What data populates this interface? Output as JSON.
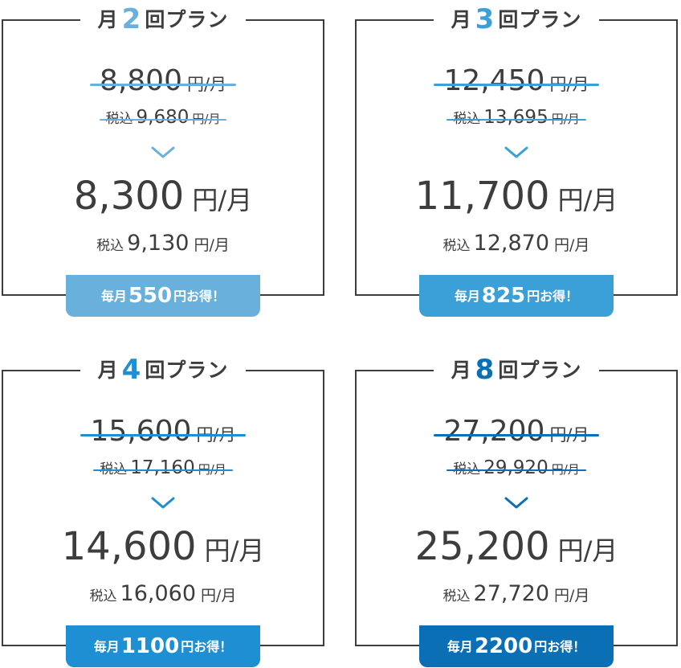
{
  "plans": [
    {
      "title_prefix": "月",
      "title_num": "2",
      "title_suffix": "回プラン",
      "old_price": "8,800",
      "old_unit": "円/月",
      "old_tax_label": "税込",
      "old_tax_price": "9,680",
      "old_tax_unit": "円/月",
      "new_price": "8,300",
      "new_unit": "円/月",
      "new_tax_label": "税込",
      "new_tax_price": "9,130",
      "new_tax_unit": "円/月",
      "badge_prefix": "毎月",
      "badge_amount": "550",
      "badge_suffix": "円お得！",
      "accent": "#6ab0dc",
      "badge_color": "#6ab0dc"
    },
    {
      "title_prefix": "月",
      "title_num": "3",
      "title_suffix": "回プラン",
      "old_price": "12,450",
      "old_unit": "円/月",
      "old_tax_label": "税込",
      "old_tax_price": "13,695",
      "old_tax_unit": "円/月",
      "new_price": "11,700",
      "new_unit": "円/月",
      "new_tax_label": "税込",
      "new_tax_price": "12,870",
      "new_tax_unit": "円/月",
      "badge_prefix": "毎月",
      "badge_amount": "825",
      "badge_suffix": "円お得！",
      "accent": "#3b9fd8",
      "badge_color": "#3b9fd8"
    },
    {
      "title_prefix": "月",
      "title_num": "4",
      "title_suffix": "回プラン",
      "old_price": "15,600",
      "old_unit": "円/月",
      "old_tax_label": "税込",
      "old_tax_price": "17,160",
      "old_tax_unit": "円/月",
      "new_price": "14,600",
      "new_unit": "円/月",
      "new_tax_label": "税込",
      "new_tax_price": "16,060",
      "new_tax_unit": "円/月",
      "badge_prefix": "毎月",
      "badge_amount": "1100",
      "badge_suffix": "円お得！",
      "accent": "#1d8fd2",
      "badge_color": "#1d8fd2"
    },
    {
      "title_prefix": "月",
      "title_num": "8",
      "title_suffix": "回プラン",
      "old_price": "27,200",
      "old_unit": "円/月",
      "old_tax_label": "税込",
      "old_tax_price": "29,920",
      "old_tax_unit": "円/月",
      "new_price": "25,200",
      "new_unit": "円/月",
      "new_tax_label": "税込",
      "new_tax_price": "27,720",
      "new_tax_unit": "円/月",
      "badge_prefix": "毎月",
      "badge_amount": "2200",
      "badge_suffix": "円お得！",
      "accent": "#0a6fb5",
      "badge_color": "#0a6fb5"
    }
  ],
  "icons": {
    "arrow": "chevron-down-icon"
  },
  "colors": {
    "text": "#3d3d3d",
    "border": "#3d3d3d"
  }
}
